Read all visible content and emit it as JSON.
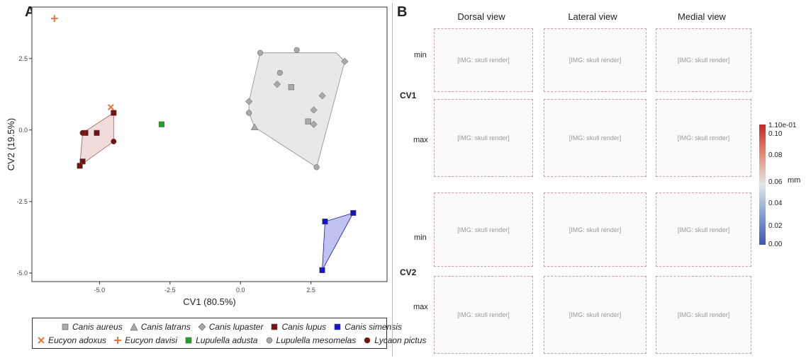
{
  "panel_a_letter": "A",
  "panel_b_letter": "B",
  "chart_data": {
    "type": "scatter",
    "title": "",
    "xlabel": "CV1 (80.5%)",
    "ylabel": "CV2 (19.5%)",
    "xlim": [
      -7.4,
      5.2
    ],
    "ylim": [
      -5.3,
      4.3
    ],
    "xticks": [
      "-5.0",
      "-2.5",
      "0.0",
      "2.5"
    ],
    "xtick_values": [
      -5.0,
      -2.5,
      0.0,
      2.5
    ],
    "yticks": [
      "2.5",
      "0.0",
      "-2.5",
      "-5.0"
    ],
    "ytick_values": [
      2.5,
      0.0,
      -2.5,
      -5.0
    ],
    "grid": false,
    "legend_position": "bottom",
    "series": [
      {
        "name": "Canis aureus",
        "marker": "square",
        "color": "#a9a9a9",
        "points": [
          [
            1.8,
            1.5
          ],
          [
            2.4,
            0.3
          ]
        ]
      },
      {
        "name": "Canis latrans",
        "marker": "triangle",
        "color": "#a9a9a9",
        "points": [
          [
            0.5,
            0.1
          ]
        ]
      },
      {
        "name": "Canis lupaster",
        "marker": "diamond",
        "color": "#a9a9a9",
        "points": [
          [
            0.3,
            1.0
          ],
          [
            1.3,
            1.6
          ],
          [
            2.6,
            0.7
          ],
          [
            2.9,
            1.2
          ],
          [
            2.6,
            0.2
          ],
          [
            3.7,
            2.4
          ]
        ]
      },
      {
        "name": "Canis lupus",
        "marker": "square",
        "color": "#7b1010",
        "points": [
          [
            -4.5,
            0.6
          ],
          [
            -5.5,
            -0.1
          ],
          [
            -5.6,
            -1.1
          ],
          [
            -5.7,
            -1.25
          ],
          [
            -5.1,
            -0.1
          ]
        ]
      },
      {
        "name": "Canis simensis",
        "marker": "square",
        "color": "#1414c8",
        "points": [
          [
            4.0,
            -2.9
          ],
          [
            3.0,
            -3.2
          ],
          [
            2.9,
            -4.9
          ]
        ]
      },
      {
        "name": "Eucyon adoxus",
        "marker": "x",
        "color": "#f07040",
        "points": [
          [
            -4.6,
            0.8
          ]
        ]
      },
      {
        "name": "Eucyon davisi",
        "marker": "plus",
        "color": "#f07040",
        "points": [
          [
            -6.6,
            3.9
          ]
        ]
      },
      {
        "name": "Lupulella adusta",
        "marker": "square",
        "color": "#22a022",
        "points": [
          [
            -2.8,
            0.2
          ]
        ]
      },
      {
        "name": "Lupulella mesomelas",
        "marker": "circle",
        "color": "#a9a9a9",
        "points": [
          [
            0.7,
            2.7
          ],
          [
            2.0,
            2.8
          ],
          [
            1.4,
            2.0
          ],
          [
            0.3,
            0.6
          ],
          [
            2.7,
            -1.3
          ]
        ]
      },
      {
        "name": "Lycaon pictus",
        "marker": "circle",
        "color": "#7b1010",
        "points": [
          [
            -5.6,
            -0.1
          ],
          [
            -4.5,
            -0.4
          ]
        ]
      }
    ],
    "hulls": [
      {
        "group": "grey",
        "fill": "#d9d9d9",
        "stroke": "#8c8c8c",
        "points": [
          [
            0.7,
            2.7
          ],
          [
            3.4,
            2.7
          ],
          [
            3.7,
            2.4
          ],
          [
            2.7,
            -1.3
          ],
          [
            0.5,
            0.1
          ],
          [
            0.3,
            0.6
          ],
          [
            0.3,
            1.0
          ]
        ]
      },
      {
        "group": "red",
        "fill": "#e8c4c4",
        "stroke": "#a45a5a",
        "points": [
          [
            -4.5,
            0.6
          ],
          [
            -4.5,
            -0.4
          ],
          [
            -5.7,
            -1.25
          ],
          [
            -5.6,
            -0.1
          ]
        ]
      },
      {
        "group": "blue",
        "fill": "#9a9ae6",
        "stroke": "#1414c8",
        "points": [
          [
            4.0,
            -2.9
          ],
          [
            3.0,
            -3.2
          ],
          [
            2.9,
            -4.9
          ]
        ]
      }
    ]
  },
  "panel_b": {
    "columns": [
      "Dorsal view",
      "Lateral view",
      "Medial view"
    ],
    "rows": [
      "min",
      "max",
      "min",
      "max"
    ],
    "cv_labels": [
      "CV1",
      "CV2"
    ],
    "colorbar": {
      "ticks": [
        "1.10e-01",
        "0.10",
        "0.08",
        "0.06",
        "0.04",
        "0.02",
        "0.00"
      ],
      "unit": "mm"
    }
  }
}
